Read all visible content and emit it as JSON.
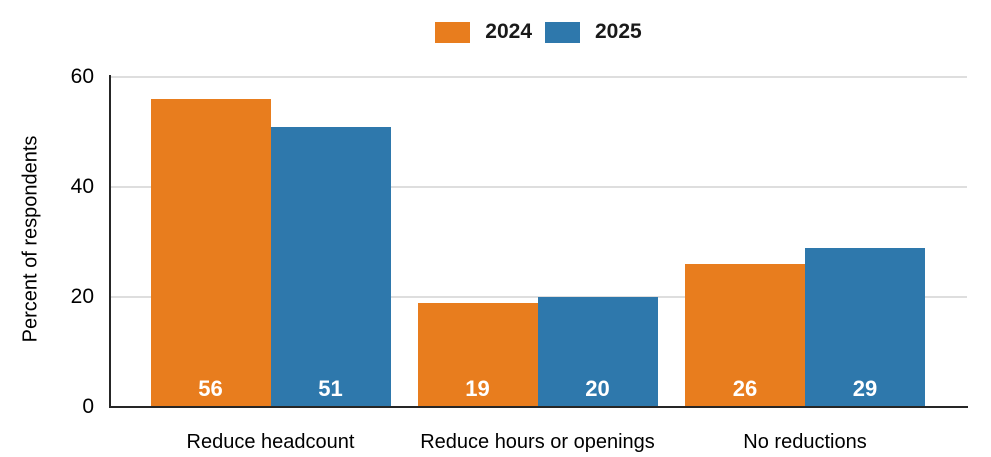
{
  "chart_data": {
    "type": "bar",
    "title": "",
    "categories": [
      "Reduce headcount",
      "Reduce hours or openings",
      "No reductions"
    ],
    "series": [
      {
        "name": "2024",
        "color": "#E87D1E",
        "values": [
          56,
          19,
          26
        ]
      },
      {
        "name": "2025",
        "color": "#2E78AC",
        "values": [
          51,
          20,
          29
        ]
      }
    ],
    "xlabel": "",
    "ylabel": "Percent of respondents",
    "ylim": [
      0,
      60
    ],
    "yticks": [
      0,
      20,
      40,
      60
    ],
    "grid": "horizontal",
    "legend_position": "top-center",
    "value_labels": "inside-bottom"
  },
  "colors": {
    "background": "#FFFFFF",
    "gridline": "#DEDEDE",
    "axis": "#262626",
    "tick_text": "#000000",
    "value_label_text": "#FFFFFF"
  }
}
